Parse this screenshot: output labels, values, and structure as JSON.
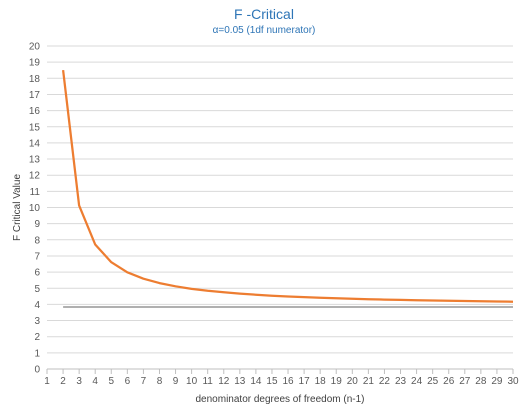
{
  "chart_data": {
    "type": "line",
    "title": "F -Critical",
    "subtitle": "α=0.05 (1df numerator)",
    "xlabel": "denominator degrees of freedom (n-1)",
    "ylabel": "F Critical Value",
    "xlim": [
      1,
      30
    ],
    "ylim": [
      0,
      20
    ],
    "x_ticks": [
      1,
      2,
      3,
      4,
      5,
      6,
      7,
      8,
      9,
      10,
      11,
      12,
      13,
      14,
      15,
      16,
      17,
      18,
      19,
      20,
      21,
      22,
      23,
      24,
      25,
      26,
      27,
      28,
      29,
      30
    ],
    "y_ticks": [
      0,
      1,
      2,
      3,
      4,
      5,
      6,
      7,
      8,
      9,
      10,
      11,
      12,
      13,
      14,
      15,
      16,
      17,
      18,
      19,
      20
    ],
    "grid": "horizontal",
    "series": [
      {
        "color": "#ed7d31",
        "x": [
          2,
          3,
          4,
          5,
          6,
          7,
          8,
          9,
          10,
          11,
          12,
          13,
          14,
          15,
          16,
          17,
          18,
          19,
          20,
          21,
          22,
          23,
          24,
          25,
          26,
          27,
          28,
          29,
          30
        ],
        "values": [
          18.51,
          10.13,
          7.71,
          6.61,
          5.99,
          5.59,
          5.32,
          5.12,
          4.96,
          4.84,
          4.75,
          4.67,
          4.6,
          4.54,
          4.49,
          4.45,
          4.41,
          4.38,
          4.35,
          4.32,
          4.3,
          4.28,
          4.26,
          4.24,
          4.23,
          4.21,
          4.2,
          4.18,
          4.17
        ]
      },
      {
        "color": "#a5a5a5",
        "x": [
          2,
          30
        ],
        "values": [
          3.84,
          3.84
        ]
      }
    ]
  }
}
